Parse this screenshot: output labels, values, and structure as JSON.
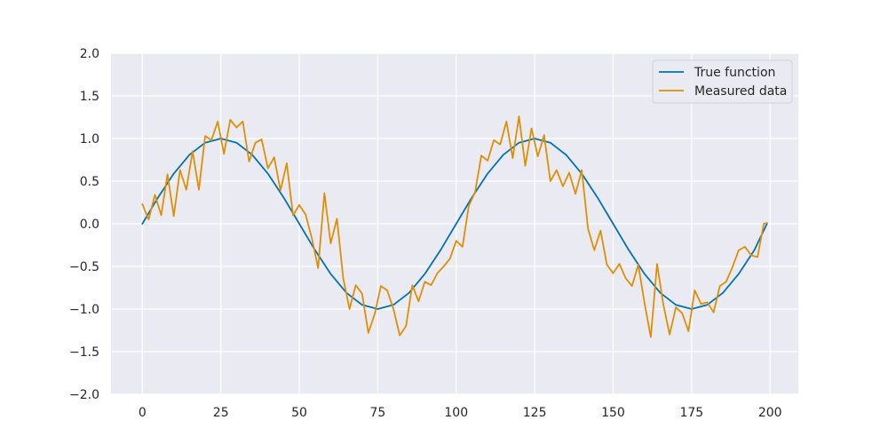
{
  "chart_data": {
    "type": "line",
    "title": "",
    "xlabel": "",
    "ylabel": "",
    "xlim": [
      -10,
      209
    ],
    "ylim": [
      -2.0,
      2.0
    ],
    "xticks": [
      0,
      25,
      50,
      75,
      100,
      125,
      150,
      175,
      200
    ],
    "yticks": [
      -2.0,
      -1.5,
      -1.0,
      -0.5,
      0.0,
      0.5,
      1.0,
      1.5,
      2.0
    ],
    "xtick_labels": [
      "0",
      "25",
      "50",
      "75",
      "100",
      "125",
      "150",
      "175",
      "200"
    ],
    "ytick_labels": [
      "−2.0",
      "−1.5",
      "−1.0",
      "−0.5",
      "0.0",
      "0.5",
      "1.0",
      "1.5",
      "2.0"
    ],
    "grid": true,
    "legend_position": "top-right",
    "colors": {
      "background": "#eaeaf2",
      "grid": "#ffffff",
      "true_function": "#0072b2",
      "measured": "#de8f05"
    },
    "series": [
      {
        "name": "True function",
        "x": [
          0,
          5,
          10,
          15,
          20,
          25,
          30,
          35,
          40,
          45,
          50,
          55,
          60,
          65,
          70,
          75,
          80,
          85,
          90,
          95,
          100,
          105,
          110,
          115,
          120,
          125,
          130,
          135,
          140,
          145,
          150,
          155,
          160,
          165,
          170,
          175,
          180,
          185,
          190,
          195,
          199
        ],
        "y": [
          0,
          0.309,
          0.588,
          0.809,
          0.951,
          1.0,
          0.951,
          0.809,
          0.588,
          0.309,
          0,
          -0.309,
          -0.588,
          -0.809,
          -0.951,
          -1.0,
          -0.951,
          -0.809,
          -0.588,
          -0.309,
          0,
          0.309,
          0.588,
          0.809,
          0.951,
          1.0,
          0.951,
          0.809,
          0.588,
          0.309,
          0,
          -0.309,
          -0.588,
          -0.809,
          -0.951,
          -1.0,
          -0.951,
          -0.809,
          -0.588,
          -0.309,
          0
        ]
      },
      {
        "name": "Measured data",
        "x": [
          0,
          2,
          4,
          6,
          8,
          10,
          12,
          14,
          16,
          18,
          20,
          22,
          24,
          26,
          28,
          30,
          32,
          34,
          36,
          38,
          40,
          42,
          44,
          46,
          48,
          50,
          52,
          54,
          56,
          58,
          60,
          62,
          64,
          66,
          68,
          70,
          72,
          74,
          76,
          78,
          80,
          82,
          84,
          86,
          88,
          90,
          92,
          94,
          96,
          98,
          100,
          102,
          104,
          106,
          108,
          110,
          112,
          114,
          116,
          118,
          120,
          122,
          124,
          126,
          128,
          130,
          132,
          134,
          136,
          138,
          140,
          142,
          144,
          146,
          148,
          150,
          152,
          154,
          156,
          158,
          160,
          162,
          164,
          166,
          168,
          170,
          172,
          174,
          176,
          178,
          180,
          182,
          184,
          186,
          188,
          190,
          192,
          194,
          196,
          198,
          199
        ],
        "y": [
          0.23,
          0.05,
          0.34,
          0.1,
          0.58,
          0.09,
          0.63,
          0.4,
          0.85,
          0.4,
          1.03,
          0.98,
          1.2,
          0.82,
          1.22,
          1.13,
          1.2,
          0.73,
          0.95,
          0.99,
          0.65,
          0.78,
          0.39,
          0.71,
          0.1,
          0.22,
          0.11,
          -0.17,
          -0.52,
          0.36,
          -0.23,
          0.06,
          -0.64,
          -1.0,
          -0.72,
          -0.82,
          -1.28,
          -1.06,
          -0.73,
          -0.78,
          -1.0,
          -1.31,
          -1.2,
          -0.72,
          -0.91,
          -0.68,
          -0.72,
          -0.58,
          -0.5,
          -0.41,
          -0.2,
          -0.27,
          0.21,
          0.37,
          0.8,
          0.74,
          0.98,
          0.93,
          1.2,
          0.77,
          1.26,
          0.68,
          1.12,
          0.79,
          1.04,
          0.5,
          0.63,
          0.44,
          0.6,
          0.35,
          0.63,
          -0.06,
          -0.31,
          -0.08,
          -0.48,
          -0.58,
          -0.47,
          -0.64,
          -0.73,
          -0.48,
          -0.93,
          -1.33,
          -0.47,
          -0.95,
          -1.3,
          -0.98,
          -1.05,
          -1.26,
          -0.78,
          -0.94,
          -0.92,
          -1.04,
          -0.73,
          -0.68,
          -0.51,
          -0.31,
          -0.27,
          -0.37,
          -0.39,
          0.0,
          0.01
        ]
      }
    ]
  }
}
